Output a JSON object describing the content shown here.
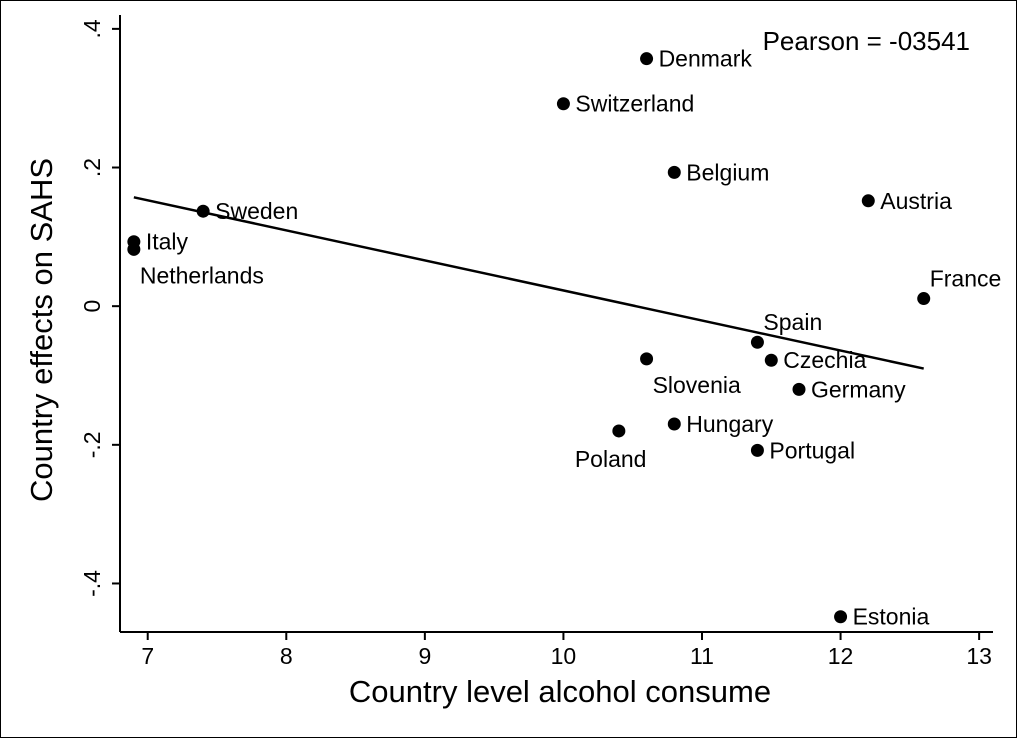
{
  "chart_data": {
    "type": "scatter",
    "title": "",
    "annotation": "Pearson = -03541",
    "xlabel": "Country level alcohol consume",
    "ylabel": "Country effects on SAHS",
    "xlim": [
      6.8,
      13.1
    ],
    "ylim": [
      -0.47,
      0.42
    ],
    "xticks": [
      7,
      8,
      9,
      10,
      11,
      12,
      13
    ],
    "yticks": [
      -0.4,
      -0.2,
      0,
      0.2,
      0.4
    ],
    "ytick_labels": [
      "-.4",
      "-.2",
      "0",
      ".2",
      ".4"
    ],
    "grid": false,
    "points": [
      {
        "label": "Denmark",
        "x": 10.6,
        "y": 0.357,
        "pos": "right"
      },
      {
        "label": "Switzerland",
        "x": 10.0,
        "y": 0.292,
        "pos": "right"
      },
      {
        "label": "Belgium",
        "x": 10.8,
        "y": 0.193,
        "pos": "right"
      },
      {
        "label": "Austria",
        "x": 12.2,
        "y": 0.152,
        "pos": "right"
      },
      {
        "label": "Sweden",
        "x": 7.4,
        "y": 0.137,
        "pos": "right"
      },
      {
        "label": "Italy",
        "x": 6.9,
        "y": 0.093,
        "pos": "right"
      },
      {
        "label": "Netherlands",
        "x": 6.9,
        "y": 0.082,
        "pos": "below-right"
      },
      {
        "label": "France",
        "x": 12.6,
        "y": 0.011,
        "pos": "above-right"
      },
      {
        "label": "Spain",
        "x": 11.4,
        "y": -0.052,
        "pos": "above"
      },
      {
        "label": "Slovenia",
        "x": 10.6,
        "y": -0.076,
        "pos": "below-right"
      },
      {
        "label": "Czechia",
        "x": 11.5,
        "y": -0.078,
        "pos": "right"
      },
      {
        "label": "Germany",
        "x": 11.7,
        "y": -0.12,
        "pos": "right"
      },
      {
        "label": "Hungary",
        "x": 10.8,
        "y": -0.17,
        "pos": "right"
      },
      {
        "label": "Poland",
        "x": 10.4,
        "y": -0.18,
        "pos": "below"
      },
      {
        "label": "Portugal",
        "x": 11.4,
        "y": -0.208,
        "pos": "right"
      },
      {
        "label": "Estonia",
        "x": 12.0,
        "y": -0.448,
        "pos": "right"
      }
    ],
    "fit_line": {
      "x": [
        6.9,
        12.6
      ],
      "y": [
        0.157,
        -0.09
      ]
    }
  }
}
